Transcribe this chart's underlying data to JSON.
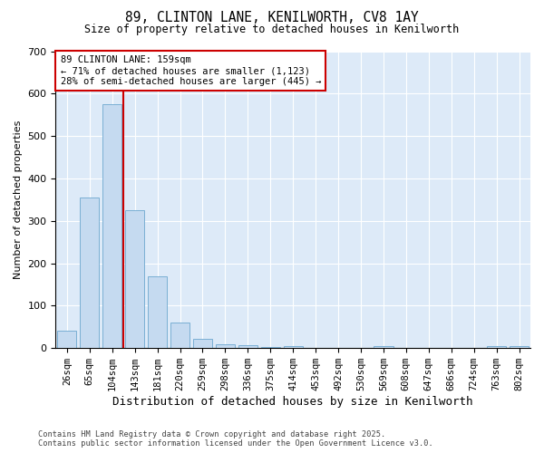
{
  "title1": "89, CLINTON LANE, KENILWORTH, CV8 1AY",
  "title2": "Size of property relative to detached houses in Kenilworth",
  "xlabel": "Distribution of detached houses by size in Kenilworth",
  "ylabel": "Number of detached properties",
  "bar_labels": [
    "26sqm",
    "65sqm",
    "104sqm",
    "143sqm",
    "181sqm",
    "220sqm",
    "259sqm",
    "298sqm",
    "336sqm",
    "375sqm",
    "414sqm",
    "453sqm",
    "492sqm",
    "530sqm",
    "569sqm",
    "608sqm",
    "647sqm",
    "686sqm",
    "724sqm",
    "763sqm",
    "802sqm"
  ],
  "bar_values": [
    40,
    355,
    575,
    325,
    170,
    60,
    22,
    10,
    6,
    2,
    4,
    0,
    0,
    0,
    5,
    0,
    0,
    0,
    0,
    5,
    5
  ],
  "bar_color": "#c5daf0",
  "bar_edge_color": "#7aafd4",
  "background_color": "#ddeaf8",
  "vline_x_index": 3,
  "vline_color": "#cc0000",
  "annotation_title": "89 CLINTON LANE: 159sqm",
  "annotation_line1": "← 71% of detached houses are smaller (1,123)",
  "annotation_line2": "28% of semi-detached houses are larger (445) →",
  "annotation_box_color": "#ffffff",
  "annotation_box_edge": "#cc0000",
  "ylim": [
    0,
    700
  ],
  "yticks": [
    0,
    100,
    200,
    300,
    400,
    500,
    600,
    700
  ],
  "footer1": "Contains HM Land Registry data © Crown copyright and database right 2025.",
  "footer2": "Contains public sector information licensed under the Open Government Licence v3.0."
}
